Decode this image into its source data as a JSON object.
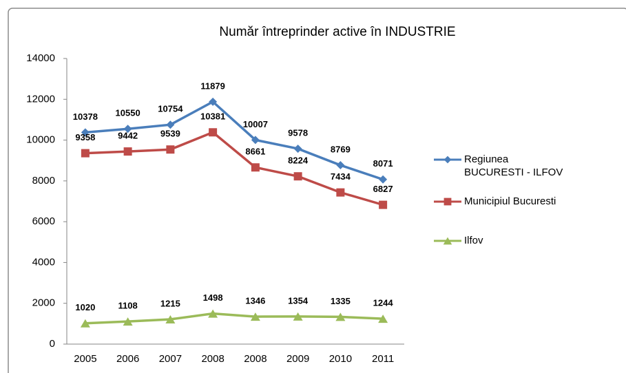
{
  "chart_data": {
    "type": "line",
    "title": "Număr întreprinder active în INDUSTRIE",
    "categories": [
      "2005",
      "2006",
      "2007",
      "2008",
      "2008",
      "2009",
      "2010",
      "2011"
    ],
    "series": [
      {
        "name": "Regiunea BUCURESTI - ILFOV",
        "color": "#4a7ebb",
        "marker": "diamond",
        "values": [
          10378,
          10550,
          10754,
          11879,
          10007,
          9578,
          8769,
          8071
        ]
      },
      {
        "name": "Municipiul Bucuresti",
        "color": "#be4b48",
        "marker": "square",
        "values": [
          9358,
          9442,
          9539,
          10381,
          8661,
          8224,
          7434,
          6827
        ]
      },
      {
        "name": "Ilfov",
        "color": "#9bbb59",
        "marker": "triangle",
        "values": [
          1020,
          1108,
          1215,
          1498,
          1346,
          1354,
          1335,
          1244
        ]
      }
    ],
    "ylim": [
      0,
      14000
    ],
    "yticks": [
      0,
      2000,
      4000,
      6000,
      8000,
      10000,
      12000,
      14000
    ],
    "grid": false,
    "legend": "right",
    "data_labels": true
  }
}
